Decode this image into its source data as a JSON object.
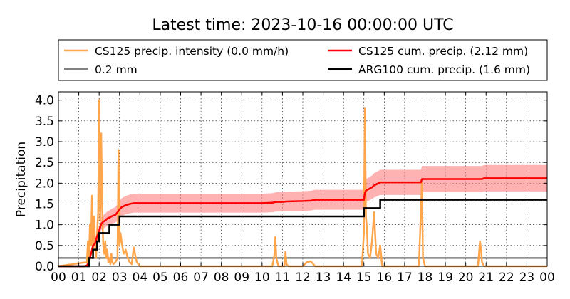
{
  "chart_data": {
    "type": "line",
    "title": "Latest time: 2023-10-16 00:00:00 UTC",
    "ylabel": "Precipitation",
    "xlabel": "",
    "xlim": [
      0,
      24
    ],
    "ylim": [
      0,
      4.2
    ],
    "grid": true,
    "legend_position": "top",
    "x_ticks": [
      "00",
      "01",
      "02",
      "03",
      "04",
      "05",
      "06",
      "07",
      "08",
      "09",
      "10",
      "11",
      "12",
      "13",
      "14",
      "15",
      "16",
      "17",
      "18",
      "19",
      "20",
      "21",
      "22",
      "23",
      "00"
    ],
    "y_ticks": [
      "0.0",
      "0.5",
      "1.0",
      "1.5",
      "2.0",
      "2.5",
      "3.0",
      "3.5",
      "4.0"
    ],
    "legend": [
      {
        "label": "CS125 precip. intensity (0.0 mm/h)",
        "color": "#ffa64d"
      },
      {
        "label": "CS125 cum. precip. (2.12 mm)",
        "color": "#ff0000"
      },
      {
        "label": "0.2 mm",
        "color": "#808080"
      },
      {
        "label": "ARG100 cum. precip. (1.6 mm)",
        "color": "#000000"
      }
    ],
    "threshold": {
      "value": 0.2,
      "color": "#808080"
    },
    "series": [
      {
        "name": "CS125 precip. intensity (0.0 mm/h)",
        "color": "#ffa64d",
        "x": [
          0,
          1.4,
          1.45,
          1.5,
          1.55,
          1.6,
          1.65,
          1.7,
          1.75,
          1.8,
          1.85,
          1.9,
          1.95,
          2.0,
          2.05,
          2.1,
          2.15,
          2.2,
          2.25,
          2.3,
          2.35,
          2.4,
          2.45,
          2.5,
          2.55,
          2.6,
          2.65,
          2.7,
          2.8,
          2.9,
          2.95,
          3.0,
          3.05,
          3.1,
          3.2,
          3.3,
          3.4,
          3.5,
          3.6,
          3.7,
          3.8,
          3.85,
          4.0,
          10.5,
          10.6,
          10.65,
          10.7,
          10.8,
          11.1,
          11.15,
          11.2,
          11.3,
          12.0,
          12.2,
          12.4,
          12.6,
          14.9,
          15.0,
          15.05,
          15.1,
          15.15,
          15.2,
          15.3,
          15.4,
          15.5,
          15.6,
          15.7,
          15.8,
          15.9,
          17.7,
          17.85,
          17.9,
          18.0,
          20.6,
          20.7,
          20.75,
          20.8,
          20.9,
          24
        ],
        "y": [
          0,
          0.1,
          0.6,
          0.2,
          1.0,
          0.5,
          1.7,
          0.3,
          1.2,
          0.6,
          0.2,
          0.8,
          1.3,
          4.0,
          1.1,
          3.2,
          1.4,
          0.5,
          0.3,
          0.6,
          0.2,
          0.4,
          0.1,
          0.2,
          0.05,
          0.3,
          0.1,
          0.05,
          0.1,
          0.2,
          2.8,
          0.5,
          0.8,
          0.6,
          0.3,
          0.4,
          0.2,
          0.1,
          0.05,
          0.45,
          0.2,
          0.1,
          0,
          0,
          0.25,
          0.7,
          0.2,
          0,
          0,
          0.35,
          0.05,
          0,
          0,
          0.1,
          0.12,
          0,
          0,
          0.8,
          3.8,
          1.2,
          0.9,
          0.3,
          0.2,
          0.6,
          1.3,
          0.3,
          0.2,
          0.5,
          0,
          0,
          2.0,
          0.2,
          0,
          0,
          0.6,
          0.4,
          0.1,
          0,
          0
        ]
      },
      {
        "name": "CS125 cum. precip. (2.12 mm)",
        "color": "#ff0000",
        "band_color": "#ff7f7f",
        "band_fraction": 0.15,
        "x": [
          0,
          1.3,
          1.4,
          1.5,
          1.6,
          1.7,
          1.8,
          1.9,
          2.0,
          2.1,
          2.2,
          2.3,
          2.4,
          2.5,
          2.6,
          2.7,
          2.8,
          2.9,
          3.0,
          3.1,
          3.3,
          3.5,
          3.7,
          4.0,
          10.0,
          10.5,
          10.7,
          11.0,
          11.2,
          12.0,
          12.4,
          12.6,
          14.0,
          14.9,
          15.0,
          15.05,
          15.1,
          15.2,
          15.4,
          15.5,
          15.6,
          15.8,
          17.8,
          17.85,
          20.0,
          20.8,
          20.9,
          24
        ],
        "y": [
          0,
          0,
          0.02,
          0.1,
          0.3,
          0.5,
          0.55,
          0.72,
          0.85,
          1.02,
          1.07,
          1.1,
          1.15,
          1.17,
          1.2,
          1.22,
          1.24,
          1.3,
          1.37,
          1.42,
          1.47,
          1.5,
          1.52,
          1.52,
          1.52,
          1.53,
          1.55,
          1.55,
          1.56,
          1.57,
          1.58,
          1.6,
          1.6,
          1.6,
          1.6,
          1.77,
          1.82,
          1.85,
          1.9,
          1.95,
          1.97,
          2.02,
          2.02,
          2.1,
          2.1,
          2.1,
          2.12,
          2.12
        ]
      },
      {
        "name": "ARG100 cum. precip. (1.6 mm)",
        "color": "#000000",
        "step": true,
        "x": [
          0,
          1.4,
          1.5,
          1.6,
          1.7,
          1.8,
          1.9,
          2.0,
          2.5,
          3.0,
          15.0,
          15.8,
          24
        ],
        "y": [
          0,
          0,
          0.2,
          0.2,
          0.4,
          0.4,
          0.6,
          0.8,
          1.0,
          1.2,
          1.4,
          1.6,
          1.6
        ]
      }
    ]
  }
}
